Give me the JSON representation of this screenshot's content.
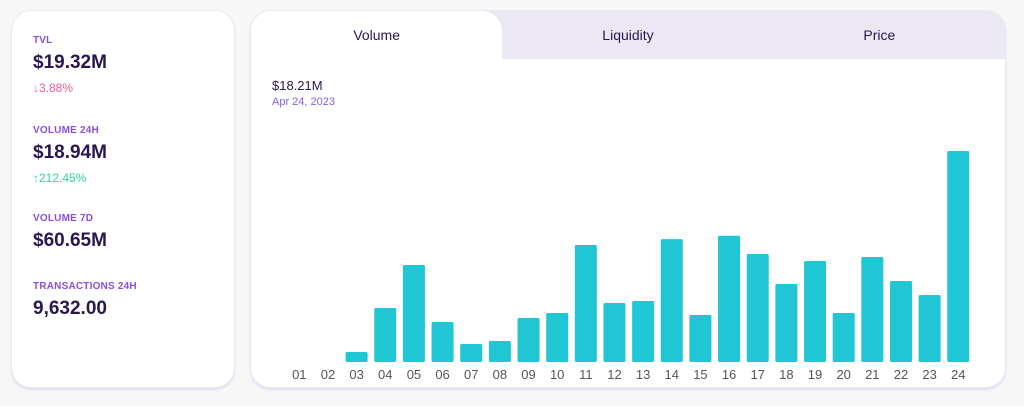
{
  "stats": [
    {
      "label": "TVL",
      "value": "$19.32M",
      "change": "↓3.88%",
      "direction": "down"
    },
    {
      "label": "VOLUME 24H",
      "value": "$18.94M",
      "change": "↑212.45%",
      "direction": "up"
    },
    {
      "label": "VOLUME 7D",
      "value": "$60.65M"
    },
    {
      "label": "TRANSACTIONS 24H",
      "value": "9,632.00"
    }
  ],
  "tabs": [
    "Volume",
    "Liquidity",
    "Price"
  ],
  "hover": {
    "value": "$18.21M",
    "date": "Apr 24, 2023"
  },
  "colors": {
    "bar": "#20c6d4",
    "label": "#2a1650",
    "accent": "#8a4fe0"
  },
  "chart_data": {
    "type": "bar",
    "title": "Volume",
    "categories": [
      "01",
      "02",
      "03",
      "04",
      "05",
      "06",
      "07",
      "08",
      "09",
      "10",
      "11",
      "12",
      "13",
      "14",
      "15",
      "16",
      "17",
      "18",
      "19",
      "20",
      "21",
      "22",
      "23",
      "24"
    ],
    "values": [
      0,
      0,
      0.86,
      4.66,
      8.37,
      3.45,
      1.55,
      1.81,
      3.8,
      4.23,
      10.1,
      5.09,
      5.26,
      10.6,
      4.06,
      10.9,
      9.32,
      6.73,
      8.72,
      4.23,
      9.06,
      6.99,
      5.78,
      18.21
    ],
    "unit": "$M",
    "ylim": [
      0,
      18.21
    ],
    "grid": false,
    "xlabel": "",
    "ylabel": ""
  }
}
